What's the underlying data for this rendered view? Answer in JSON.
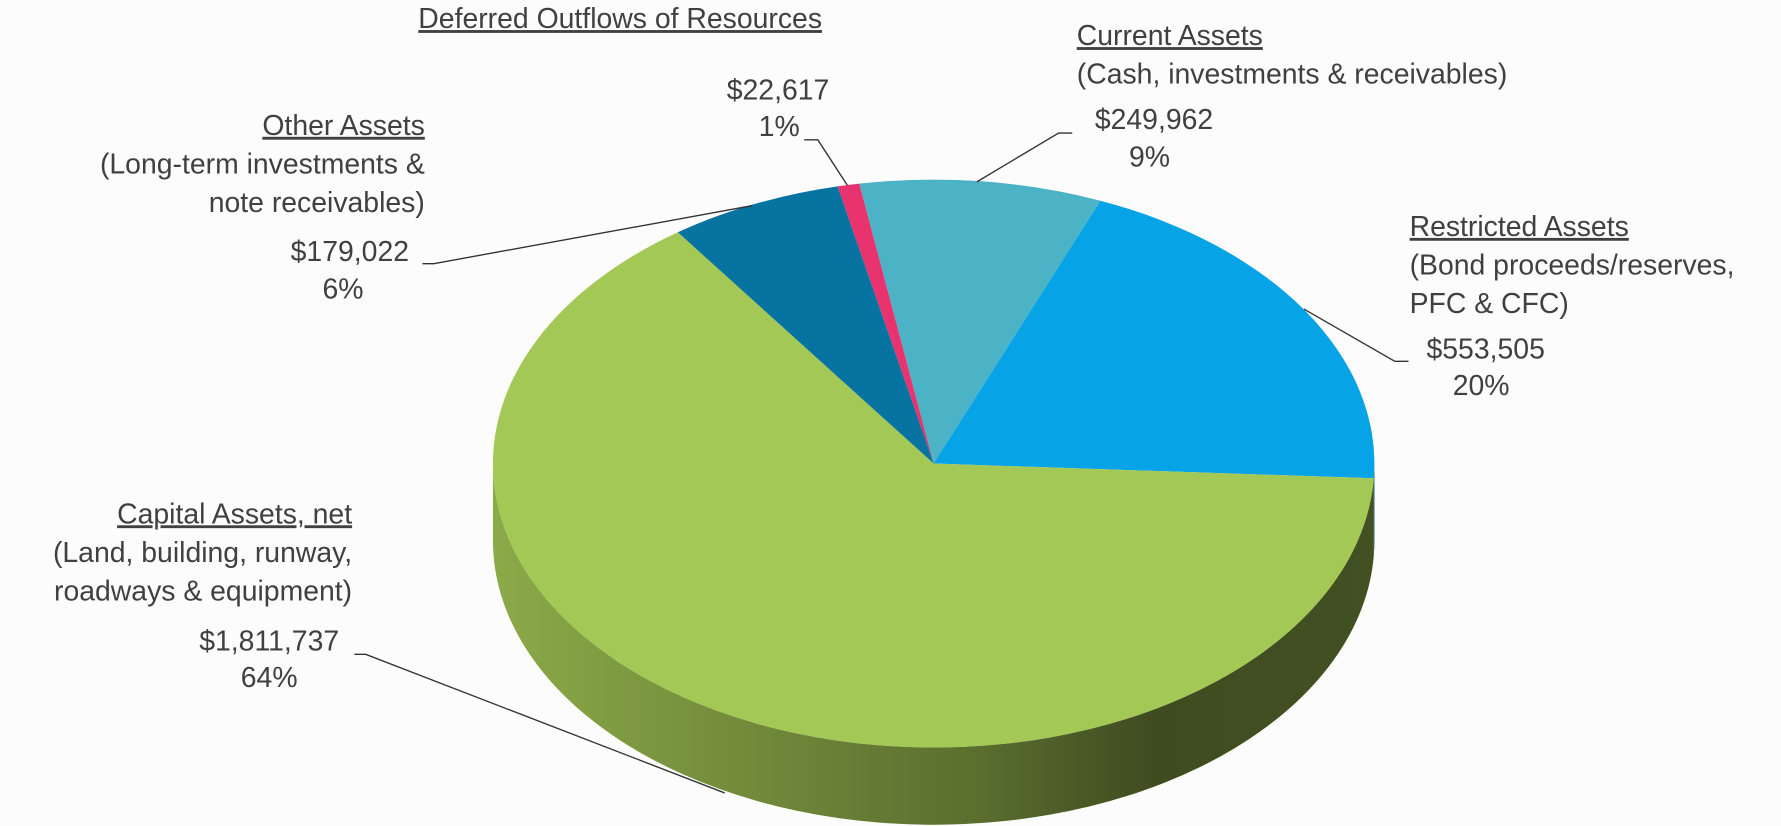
{
  "chart_data": {
    "type": "pie",
    "categories": [
      "Deferred Outflows of Resources",
      "Current Assets",
      "Restricted Assets",
      "Capital Assets, net",
      "Other Assets"
    ],
    "descriptions": [
      [],
      [
        "(Cash, investments & receivables)"
      ],
      [
        "(Bond proceeds/reserves,",
        "PFC & CFC)"
      ],
      [
        "(Land, building, runway,",
        "roadways & equipment)"
      ],
      [
        "(Long-term investments &",
        "note receivables)"
      ]
    ],
    "values": [
      22617,
      249962,
      553505,
      1811737,
      179022
    ],
    "value_labels": [
      "$22,617",
      "$249,962",
      "$553,505",
      "$1,811,737",
      "$179,022"
    ],
    "percents": [
      1,
      9,
      20,
      64,
      6
    ],
    "percent_labels": [
      "1%",
      "9%",
      "20%",
      "64%",
      "6%"
    ],
    "colors": [
      "#e8336e",
      "#4bb3c5",
      "#06a3e6",
      "#a4c855",
      "#0673a0"
    ]
  }
}
